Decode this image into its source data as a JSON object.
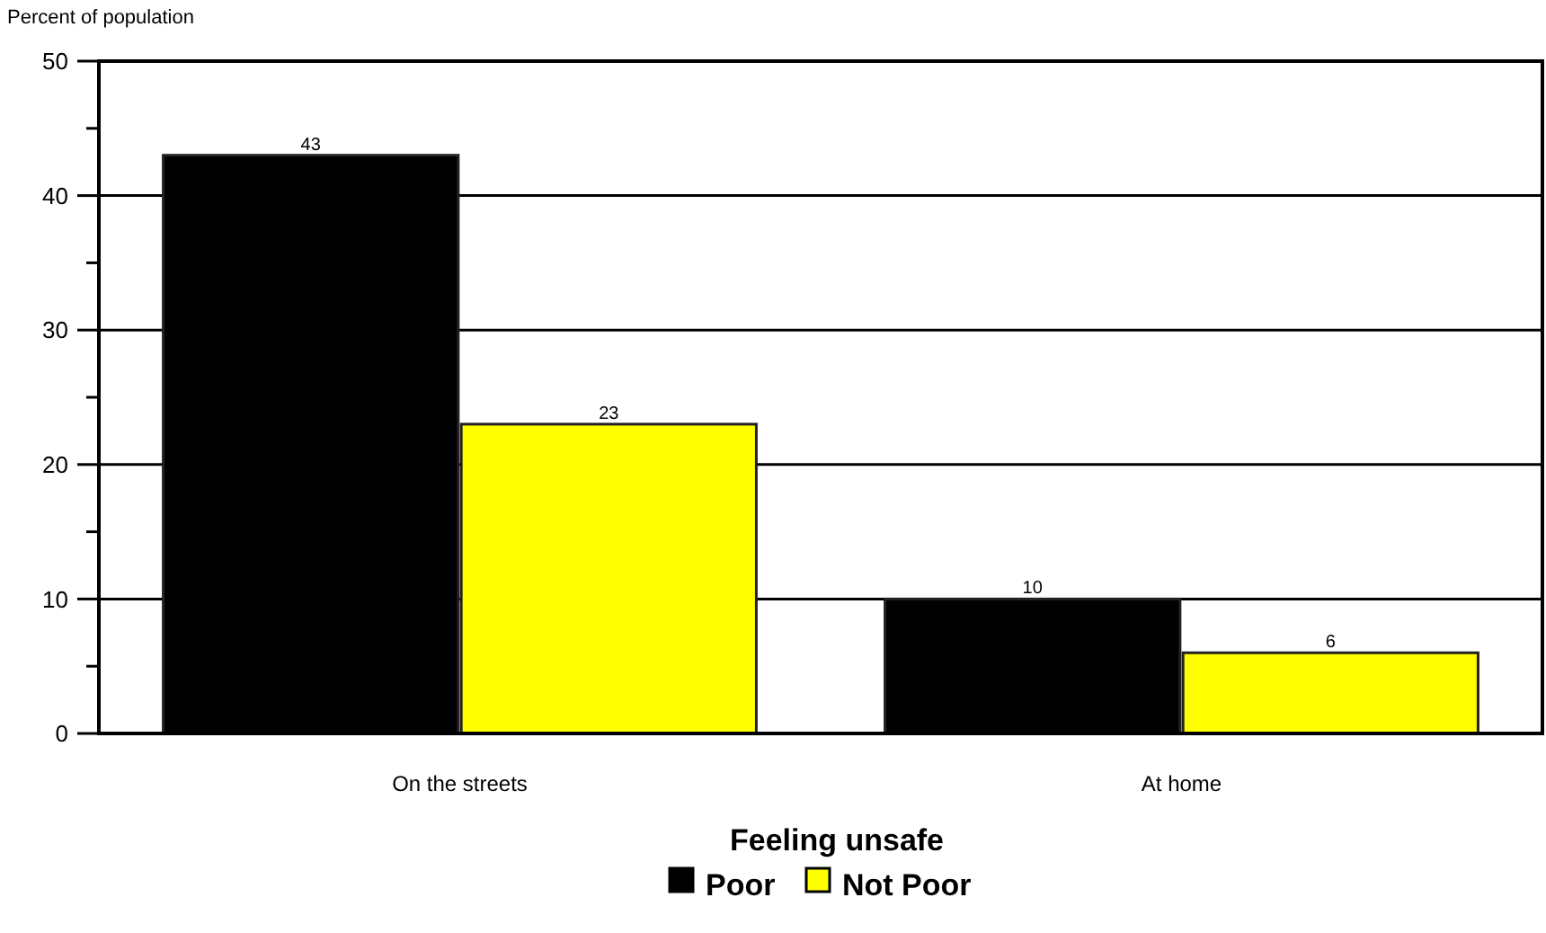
{
  "chart_data": {
    "type": "bar",
    "ylabel": "Percent of population",
    "xlabel": "Feeling unsafe",
    "categories": [
      "On the streets",
      "At home"
    ],
    "series": [
      {
        "name": "Poor",
        "color": "#000000",
        "values": [
          43,
          10
        ]
      },
      {
        "name": "Not Poor",
        "color": "#ffff00",
        "values": [
          23,
          6
        ]
      }
    ],
    "ylim": [
      0,
      50
    ],
    "yticks": [
      0,
      {
        "value": 5,
        "label": null
      },
      10,
      {
        "value": 15,
        "label": null
      },
      20,
      {
        "value": 25,
        "label": null
      },
      30,
      {
        "value": 35,
        "label": null
      },
      40,
      {
        "value": 45,
        "label": null
      },
      50
    ],
    "grid": "y",
    "legend": "bottom",
    "data_labels": true
  }
}
